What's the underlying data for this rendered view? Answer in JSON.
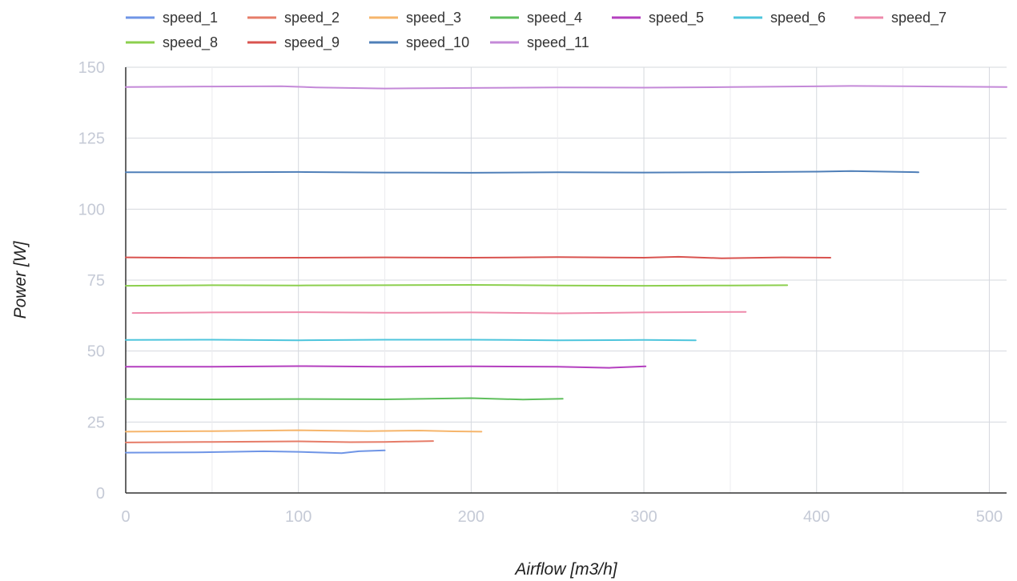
{
  "chart_data": {
    "type": "line",
    "xlabel": "Airflow [m3/h]",
    "ylabel": "Power [W]",
    "xlim": [
      0,
      510
    ],
    "ylim": [
      0,
      150
    ],
    "x_ticks": [
      0,
      100,
      200,
      300,
      400,
      500
    ],
    "y_ticks": [
      0,
      25,
      50,
      75,
      100,
      125,
      150
    ],
    "grid": true,
    "legend_position": "top",
    "series": [
      {
        "name": "speed_1",
        "color": "#6f95e6",
        "x": [
          0,
          40,
          80,
          100,
          125,
          135,
          150
        ],
        "y": [
          14.2,
          14.3,
          14.7,
          14.5,
          14.0,
          14.7,
          15.0
        ]
      },
      {
        "name": "speed_2",
        "color": "#e67c68",
        "x": [
          0,
          50,
          100,
          130,
          150,
          178
        ],
        "y": [
          17.8,
          18.0,
          18.2,
          17.9,
          18.0,
          18.3
        ]
      },
      {
        "name": "speed_3",
        "color": "#f6b56b",
        "x": [
          0,
          50,
          100,
          140,
          170,
          190,
          206
        ],
        "y": [
          21.6,
          21.8,
          22.1,
          21.8,
          22.0,
          21.7,
          21.6
        ]
      },
      {
        "name": "speed_4",
        "color": "#5fbf5c",
        "x": [
          0,
          50,
          100,
          150,
          200,
          230,
          253
        ],
        "y": [
          33.1,
          33.0,
          33.1,
          33.0,
          33.4,
          32.9,
          33.2
        ]
      },
      {
        "name": "speed_5",
        "color": "#b43fbf",
        "x": [
          0,
          50,
          100,
          150,
          200,
          250,
          280,
          301
        ],
        "y": [
          44.5,
          44.5,
          44.7,
          44.5,
          44.6,
          44.5,
          44.1,
          44.6
        ]
      },
      {
        "name": "speed_6",
        "color": "#4ec5dc",
        "x": [
          0,
          50,
          100,
          150,
          200,
          250,
          300,
          330
        ],
        "y": [
          53.9,
          54.0,
          53.8,
          54.0,
          54.0,
          53.8,
          53.9,
          53.8
        ]
      },
      {
        "name": "speed_7",
        "color": "#ee8aab",
        "x": [
          4,
          50,
          100,
          150,
          200,
          250,
          300,
          359
        ],
        "y": [
          63.4,
          63.6,
          63.7,
          63.5,
          63.6,
          63.3,
          63.6,
          63.8
        ]
      },
      {
        "name": "speed_8",
        "color": "#8ccf4e",
        "x": [
          0,
          50,
          100,
          150,
          200,
          250,
          300,
          350,
          383
        ],
        "y": [
          73.0,
          73.2,
          73.1,
          73.2,
          73.3,
          73.1,
          73.0,
          73.1,
          73.2
        ]
      },
      {
        "name": "speed_9",
        "color": "#d9534f",
        "x": [
          0,
          50,
          100,
          150,
          200,
          250,
          300,
          320,
          345,
          380,
          408
        ],
        "y": [
          83.0,
          82.8,
          82.9,
          83.0,
          82.9,
          83.1,
          82.9,
          83.2,
          82.7,
          83.0,
          82.9
        ]
      },
      {
        "name": "speed_10",
        "color": "#4f7fb8",
        "x": [
          0,
          50,
          100,
          150,
          200,
          250,
          300,
          350,
          400,
          420,
          459
        ],
        "y": [
          113.0,
          113.0,
          113.1,
          112.9,
          112.8,
          113.0,
          112.9,
          113.0,
          113.2,
          113.4,
          113.0
        ]
      },
      {
        "name": "speed_11",
        "color": "#c489d8",
        "x": [
          0,
          50,
          90,
          110,
          150,
          200,
          250,
          300,
          350,
          420,
          470,
          510
        ],
        "y": [
          143.0,
          143.2,
          143.3,
          142.9,
          142.5,
          142.7,
          142.9,
          142.8,
          143.0,
          143.4,
          143.2,
          143.0
        ]
      }
    ]
  }
}
